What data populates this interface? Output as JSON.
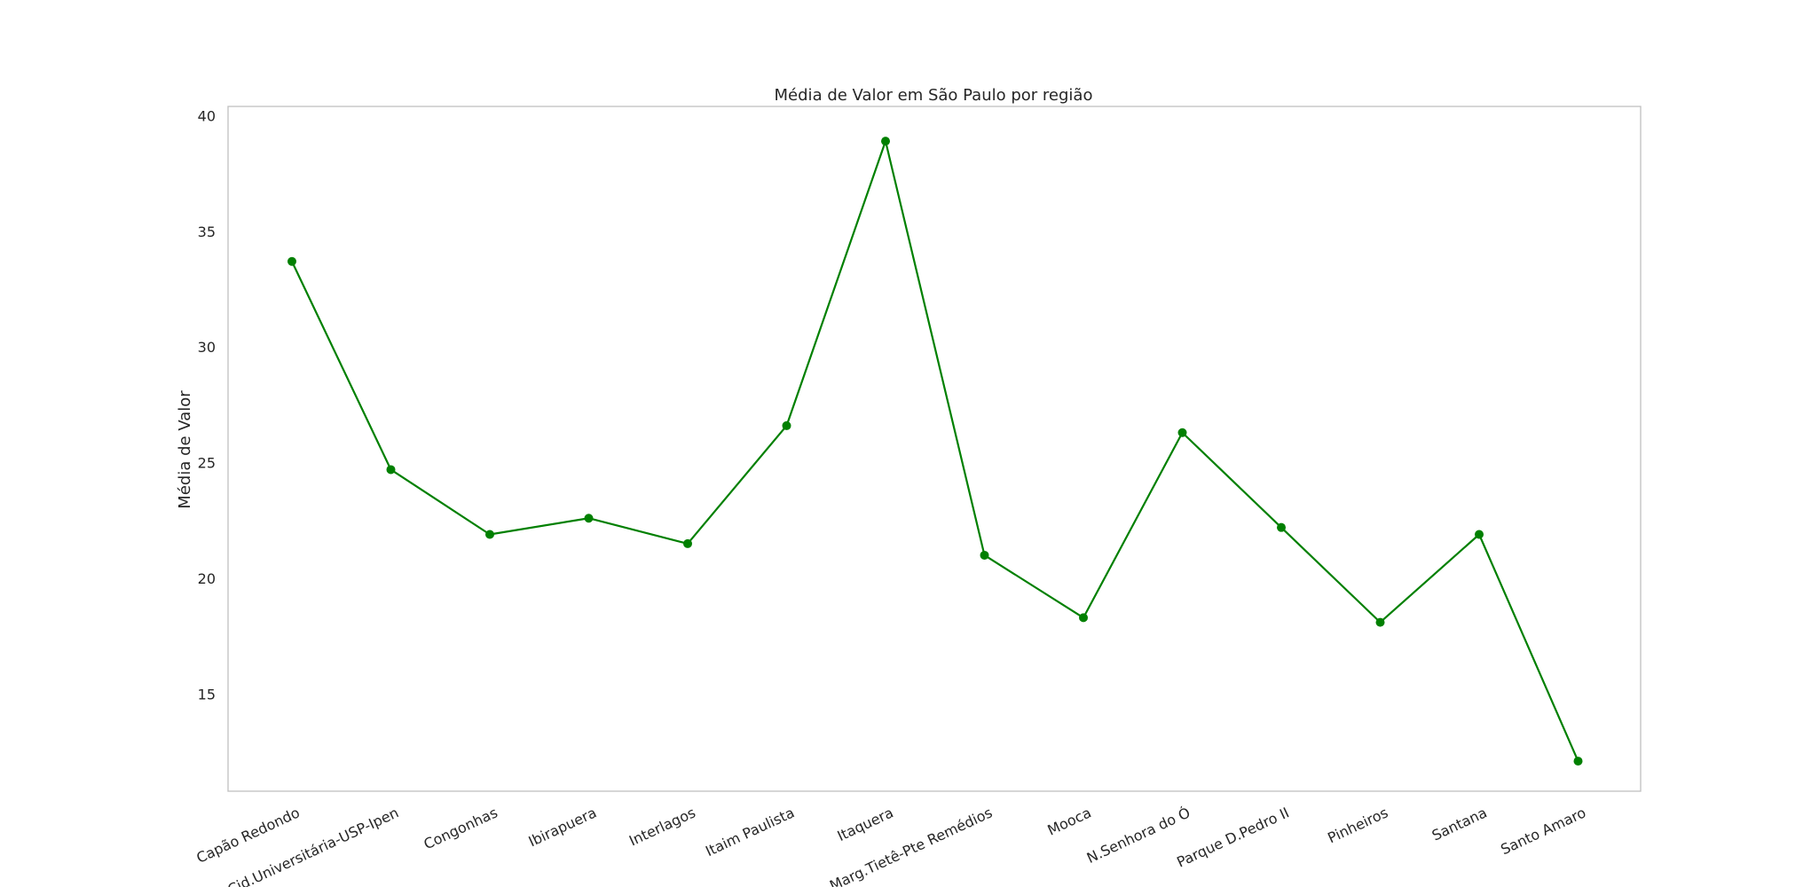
{
  "chart_data": {
    "type": "line",
    "title": "Média de Valor em São Paulo por região",
    "xlabel": "",
    "ylabel": "Média de Valor",
    "categories": [
      "Capão Redondo",
      "Cid.Universitária-USP-Ipen",
      "Congonhas",
      "Ibirapuera",
      "Interlagos",
      "Itaim Paulista",
      "Itaquera",
      "Marg.Tietê-Pte Remédios",
      "Mooca",
      "N.Senhora do Ó",
      "Parque D.Pedro II",
      "Pinheiros",
      "Santana",
      "Santo Amaro"
    ],
    "series": [
      {
        "values": [
          33.7,
          24.7,
          21.9,
          22.6,
          21.5,
          26.6,
          38.9,
          21.0,
          18.3,
          26.3,
          22.2,
          18.1,
          21.9,
          12.1
        ],
        "color": "#008000",
        "marker": "circle"
      }
    ],
    "ylim": [
      10.8,
      40.4
    ],
    "yticks": [
      15,
      20,
      25,
      30,
      35,
      40
    ],
    "ytick_labels": [
      "15",
      "20",
      "25",
      "30",
      "35",
      "40"
    ],
    "grid": false,
    "legend": "none",
    "xtick_rotation": "angled"
  }
}
